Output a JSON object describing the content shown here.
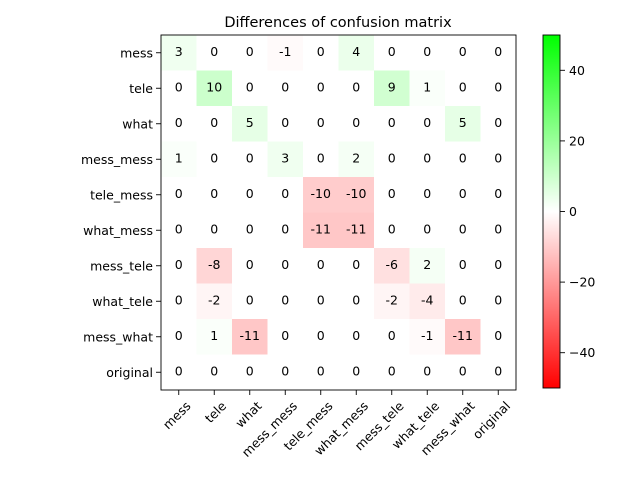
{
  "chart_data": {
    "type": "heatmap",
    "title": "Differences of confusion matrix",
    "xlabel": "",
    "ylabel": "",
    "row_labels": [
      "mess",
      "tele",
      "what",
      "mess_mess",
      "tele_mess",
      "what_mess",
      "mess_tele",
      "what_tele",
      "mess_what",
      "original"
    ],
    "col_labels": [
      "mess",
      "tele",
      "what",
      "mess_mess",
      "tele_mess",
      "what_mess",
      "mess_tele",
      "what_tele",
      "mess_what",
      "original"
    ],
    "values": [
      [
        3,
        0,
        0,
        -1,
        0,
        4,
        0,
        0,
        0,
        0
      ],
      [
        0,
        10,
        0,
        0,
        0,
        0,
        9,
        1,
        0,
        0
      ],
      [
        0,
        0,
        5,
        0,
        0,
        0,
        0,
        0,
        5,
        0
      ],
      [
        1,
        0,
        0,
        3,
        0,
        2,
        0,
        0,
        0,
        0
      ],
      [
        0,
        0,
        0,
        0,
        -10,
        -10,
        0,
        0,
        0,
        0
      ],
      [
        0,
        0,
        0,
        0,
        -11,
        -11,
        0,
        0,
        0,
        0
      ],
      [
        0,
        -8,
        0,
        0,
        0,
        0,
        -6,
        2,
        0,
        0
      ],
      [
        0,
        -2,
        0,
        0,
        0,
        0,
        -2,
        -4,
        0,
        0
      ],
      [
        0,
        1,
        -11,
        0,
        0,
        0,
        0,
        -1,
        -11,
        0
      ],
      [
        0,
        0,
        0,
        0,
        0,
        0,
        0,
        0,
        0,
        0
      ]
    ],
    "colorbar": {
      "vmin": -50,
      "vmax": 50,
      "ticks": [
        -40,
        -20,
        0,
        20,
        40
      ],
      "tick_labels": [
        "−40",
        "−20",
        "0",
        "20",
        "40"
      ],
      "colors": {
        "negative": "#ff0000",
        "zero": "#ffffff",
        "positive": "#00ff00"
      }
    },
    "legend": "none",
    "grid": false
  }
}
